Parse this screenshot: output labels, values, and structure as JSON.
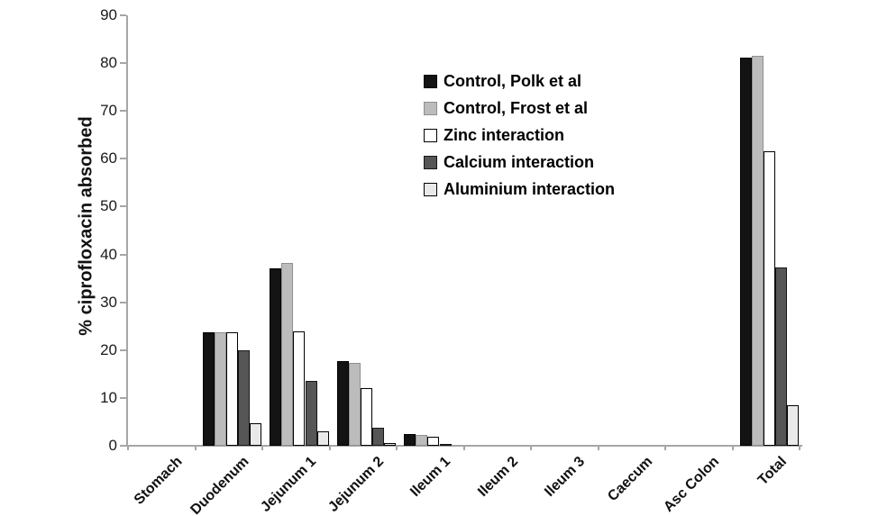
{
  "chart_data": {
    "type": "bar",
    "title": "",
    "xlabel": "",
    "ylabel": "% ciprofloxacin absorbed",
    "ylim": [
      0,
      90
    ],
    "yticks": [
      0,
      10,
      20,
      30,
      40,
      50,
      60,
      70,
      80,
      90
    ],
    "grid": false,
    "legend_position": "inside-top-center-right",
    "categories": [
      "Stomach",
      "Duodenum",
      "Jejunum 1",
      "Jejunum 2",
      "Ileum 1",
      "Ileum 2",
      "Ileum 3",
      "Caecum",
      "Asc Colon",
      "Total"
    ],
    "series": [
      {
        "name": "Control, Polk et al",
        "fill": "#131313",
        "border": "#000000",
        "border_width": 1,
        "values": [
          0,
          23.8,
          37.1,
          17.7,
          2.4,
          0,
          0,
          0,
          0,
          81.2
        ]
      },
      {
        "name": "Control, Frost et al",
        "fill": "#bcbcbc",
        "border": "#8f8f8f",
        "border_width": 1,
        "values": [
          0,
          23.8,
          38.3,
          17.3,
          2.2,
          0,
          0,
          0,
          0,
          81.6
        ]
      },
      {
        "name": "Zinc interaction",
        "fill": "#ffffff",
        "border": "#000000",
        "border_width": 1.5,
        "values": [
          0,
          23.8,
          24.0,
          12.1,
          1.8,
          0,
          0,
          0,
          0,
          61.6
        ]
      },
      {
        "name": "Calcium interaction",
        "fill": "#565656",
        "border": "#161616",
        "border_width": 1,
        "values": [
          0,
          19.9,
          13.6,
          3.7,
          0.3,
          0,
          0,
          0,
          0,
          37.3
        ]
      },
      {
        "name": "Aluminium interaction",
        "fill": "#e9e9e9",
        "border": "#000000",
        "border_width": 1.5,
        "values": [
          0,
          4.8,
          3.0,
          0.6,
          0,
          0,
          0,
          0,
          0,
          8.4
        ]
      }
    ]
  },
  "axis_style": {
    "line_color": "#a6a6a6",
    "tick_label_color": "#1a1a1a"
  }
}
